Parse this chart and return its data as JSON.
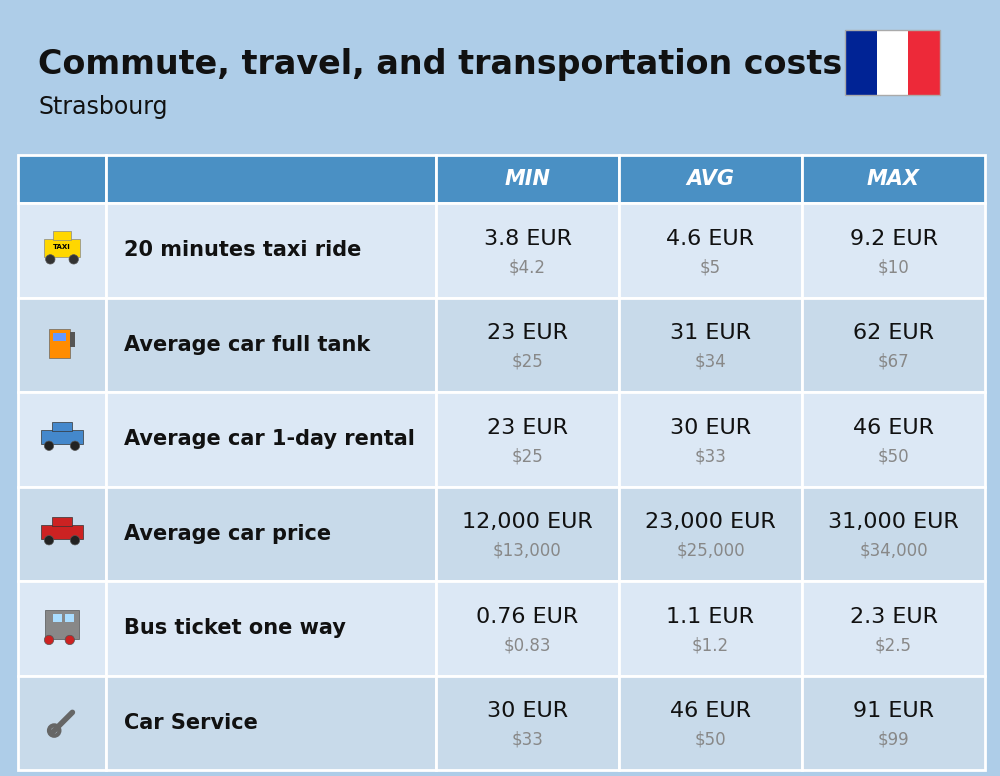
{
  "title": "Commute, travel, and transportation costs",
  "subtitle": "Strasbourg",
  "background_color": "#aecde8",
  "header_bg_color": "#4a90c4",
  "header_text_color": "#ffffff",
  "row_colors": [
    "#dce8f5",
    "#c8daea"
  ],
  "cell_divider_color": "#ffffff",
  "col_header_labels": [
    "MIN",
    "AVG",
    "MAX"
  ],
  "rows": [
    {
      "label": "20 minutes taxi ride",
      "min_eur": "3.8 EUR",
      "min_usd": "$4.2",
      "avg_eur": "4.6 EUR",
      "avg_usd": "$5",
      "max_eur": "9.2 EUR",
      "max_usd": "$10"
    },
    {
      "label": "Average car full tank",
      "min_eur": "23 EUR",
      "min_usd": "$25",
      "avg_eur": "31 EUR",
      "avg_usd": "$34",
      "max_eur": "62 EUR",
      "max_usd": "$67"
    },
    {
      "label": "Average car 1-day rental",
      "min_eur": "23 EUR",
      "min_usd": "$25",
      "avg_eur": "30 EUR",
      "avg_usd": "$33",
      "max_eur": "46 EUR",
      "max_usd": "$50"
    },
    {
      "label": "Average car price",
      "min_eur": "12,000 EUR",
      "min_usd": "$13,000",
      "avg_eur": "23,000 EUR",
      "avg_usd": "$25,000",
      "max_eur": "31,000 EUR",
      "max_usd": "$34,000"
    },
    {
      "label": "Bus ticket one way",
      "min_eur": "0.76 EUR",
      "min_usd": "$0.83",
      "avg_eur": "1.1 EUR",
      "avg_usd": "$1.2",
      "max_eur": "2.3 EUR",
      "max_usd": "$2.5"
    },
    {
      "label": "Car Service",
      "min_eur": "30 EUR",
      "min_usd": "$33",
      "avg_eur": "46 EUR",
      "avg_usd": "$50",
      "max_eur": "91 EUR",
      "max_usd": "$99"
    }
  ],
  "title_fontsize": 24,
  "subtitle_fontsize": 17,
  "header_fontsize": 15,
  "cell_eur_fontsize": 16,
  "cell_usd_fontsize": 12,
  "label_fontsize": 15,
  "icon_fontsize": 26,
  "flag_colors": [
    "#002395",
    "#FFFFFF",
    "#ED2939"
  ]
}
